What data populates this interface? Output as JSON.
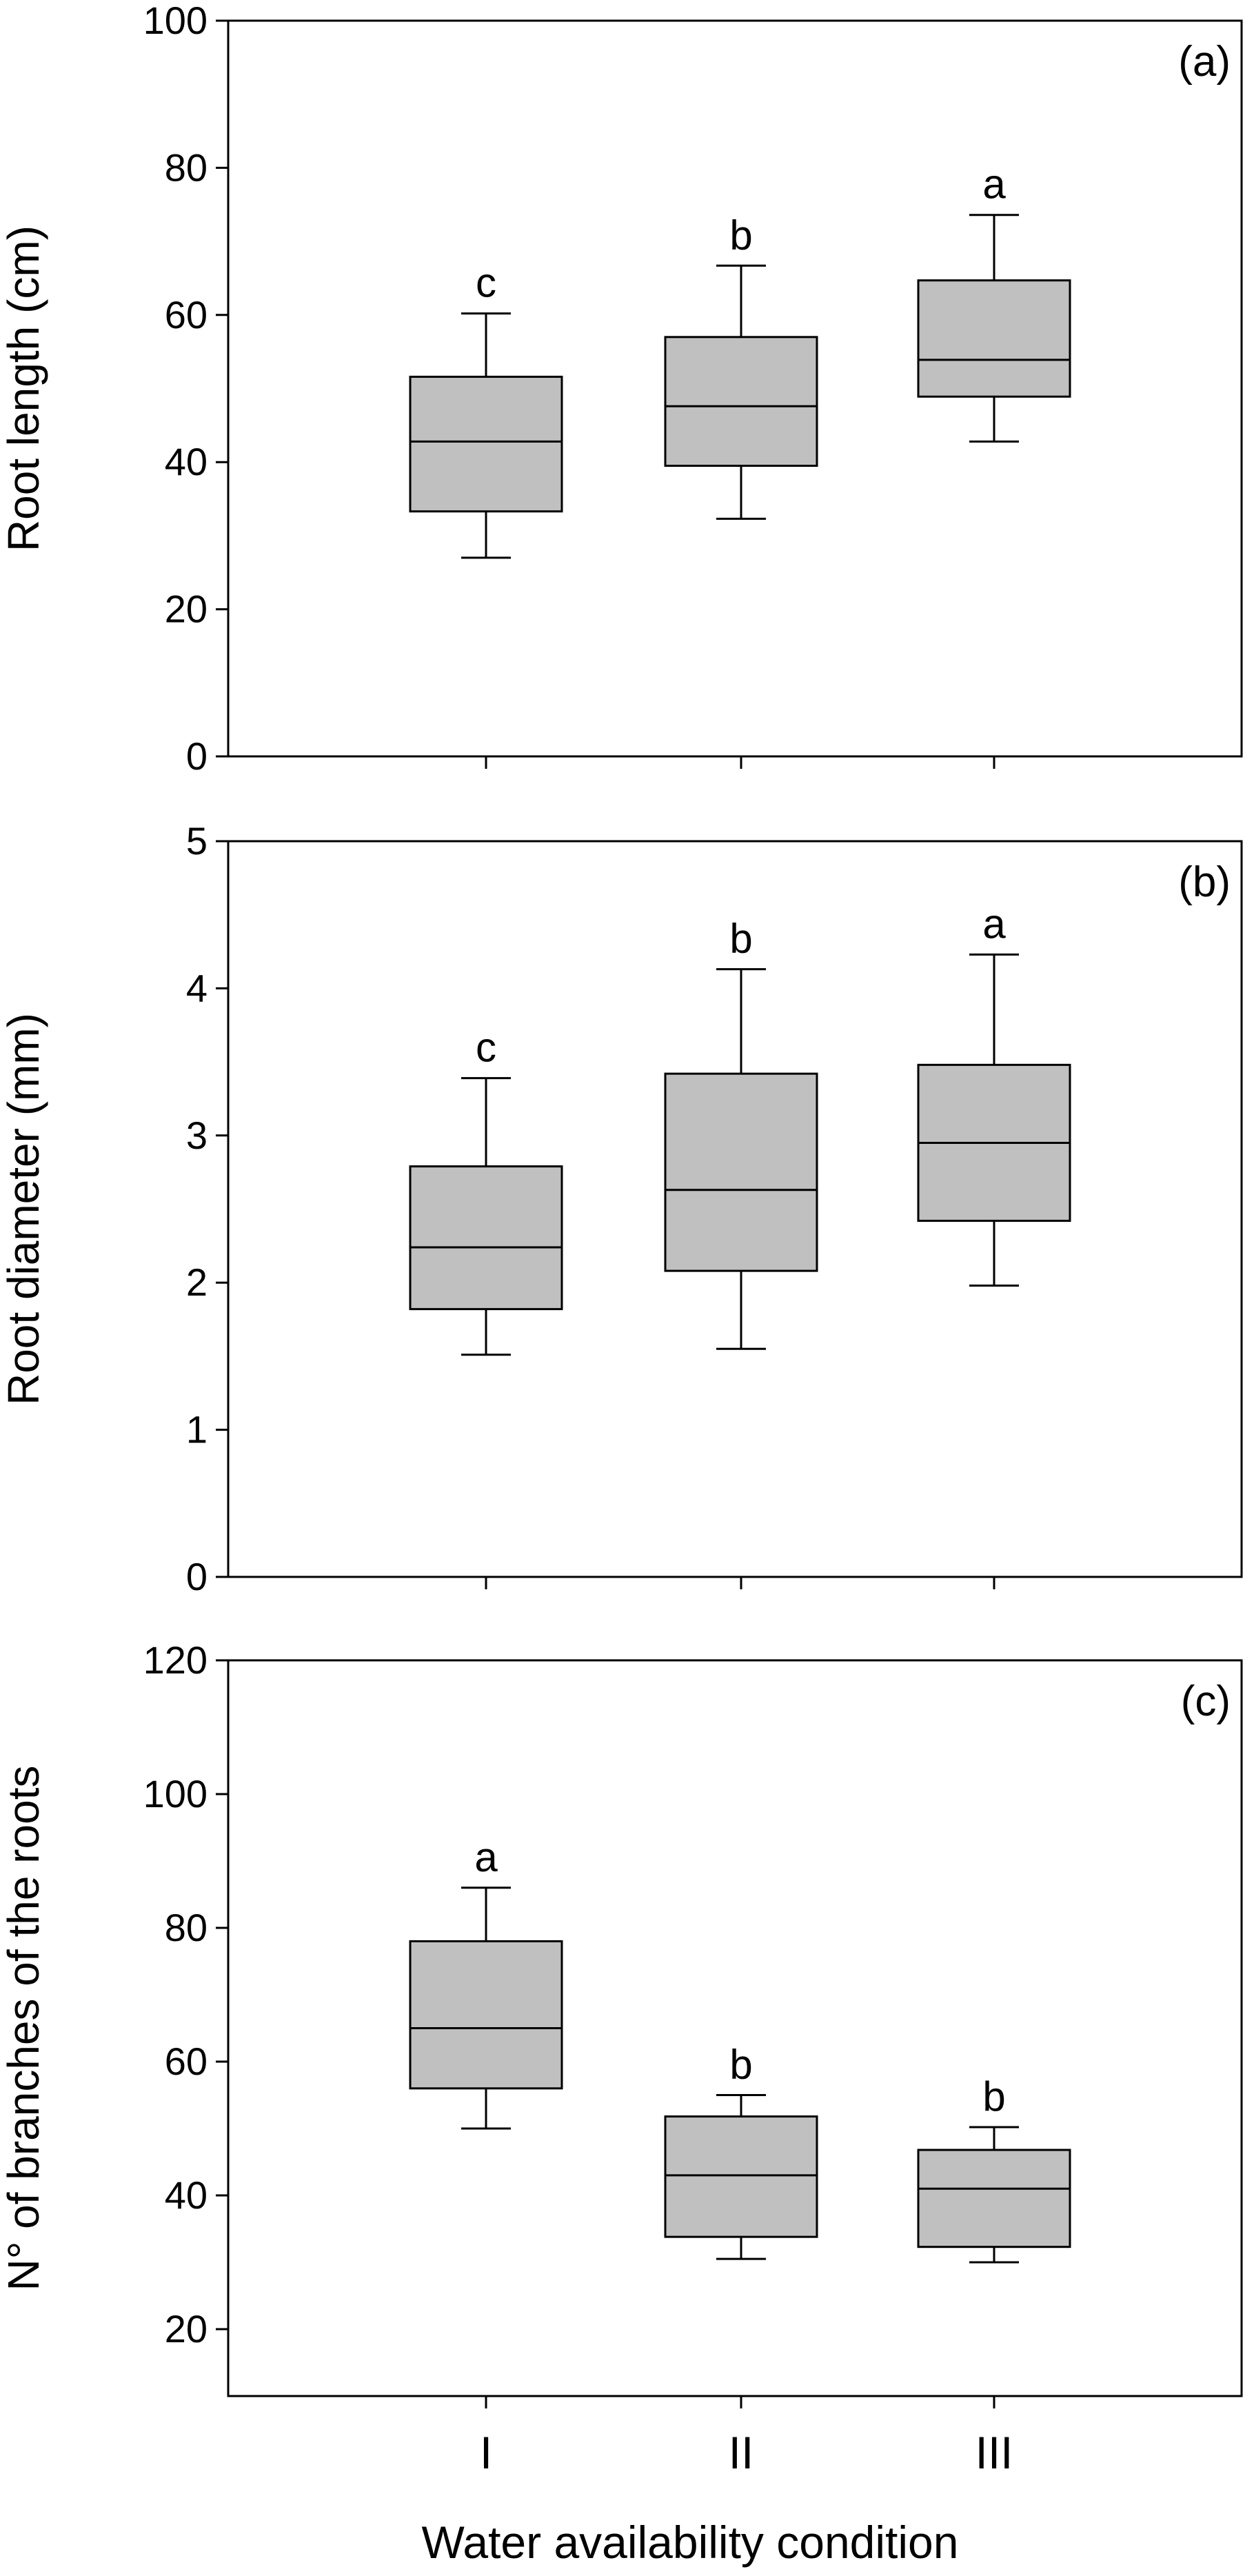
{
  "figure": {
    "xlabel": "Water availability condition"
  },
  "chart_data": [
    {
      "type": "box",
      "panel_label": "(a)",
      "ylabel": "Root length (cm)",
      "ylim": [
        0,
        100
      ],
      "yticks": [
        0,
        20,
        40,
        60,
        80,
        100
      ],
      "categories": [
        "I",
        "II",
        "III"
      ],
      "boxes": [
        {
          "category": "I",
          "whisker_low": 27,
          "q1": 33.3,
          "median": 42.8,
          "q3": 51.6,
          "whisker_high": 60.2,
          "letter": "c"
        },
        {
          "category": "II",
          "whisker_low": 32.3,
          "q1": 39.5,
          "median": 47.6,
          "q3": 57.0,
          "whisker_high": 66.7,
          "letter": "b"
        },
        {
          "category": "III",
          "whisker_low": 42.8,
          "q1": 48.9,
          "median": 53.9,
          "q3": 64.7,
          "whisker_high": 73.6,
          "letter": "a"
        }
      ],
      "show_x_labels": false,
      "grid": false,
      "box_color": "#c0c0c0"
    },
    {
      "type": "box",
      "panel_label": "(b)",
      "ylabel": "Root diameter (mm)",
      "ylim": [
        0,
        5
      ],
      "yticks": [
        0,
        1,
        2,
        3,
        4,
        5
      ],
      "categories": [
        "I",
        "II",
        "III"
      ],
      "boxes": [
        {
          "category": "I",
          "whisker_low": 1.51,
          "q1": 1.82,
          "median": 2.24,
          "q3": 2.79,
          "whisker_high": 3.39,
          "letter": "c"
        },
        {
          "category": "II",
          "whisker_low": 1.55,
          "q1": 2.08,
          "median": 2.63,
          "q3": 3.42,
          "whisker_high": 4.13,
          "letter": "b"
        },
        {
          "category": "III",
          "whisker_low": 1.98,
          "q1": 2.42,
          "median": 2.95,
          "q3": 3.48,
          "whisker_high": 4.23,
          "letter": "a"
        }
      ],
      "show_x_labels": false,
      "grid": false,
      "box_color": "#c0c0c0"
    },
    {
      "type": "box",
      "panel_label": "(c)",
      "ylabel": "N° of branches of the roots",
      "ylim": [
        10,
        120
      ],
      "yticks": [
        20,
        40,
        60,
        80,
        100,
        120
      ],
      "categories": [
        "I",
        "II",
        "III"
      ],
      "boxes": [
        {
          "category": "I",
          "whisker_low": 50,
          "q1": 56,
          "median": 65,
          "q3": 78,
          "whisker_high": 86,
          "letter": "a"
        },
        {
          "category": "II",
          "whisker_low": 30.5,
          "q1": 33.8,
          "median": 43,
          "q3": 51.8,
          "whisker_high": 55,
          "letter": "b"
        },
        {
          "category": "III",
          "whisker_low": 30,
          "q1": 32.3,
          "median": 41,
          "q3": 46.8,
          "whisker_high": 50.2,
          "letter": "b"
        }
      ],
      "show_x_labels": true,
      "grid": false,
      "box_color": "#c0c0c0"
    }
  ]
}
